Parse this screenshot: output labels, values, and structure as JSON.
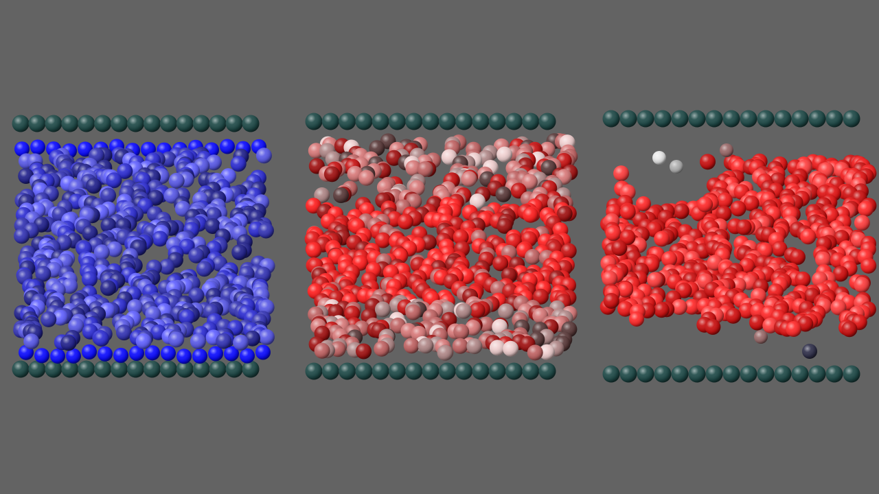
{
  "background": "#636363",
  "wall_color": "#1f4a48",
  "panels": [
    {
      "name": "blue-ensemble",
      "palette": [
        "#0c0cff",
        "#1a1ae6",
        "#2e2ed2",
        "#4646f0",
        "#5a5ae6",
        "#3535b4",
        "#22228c",
        "#6262ff"
      ]
    },
    {
      "name": "mixed-red-ensemble",
      "palette": [
        "#ff2020",
        "#e61818",
        "#c81414",
        "#a01212",
        "#d87a7a",
        "#c06464",
        "#8a4a4a",
        "#f0d0d0",
        "#b08888",
        "#5a3a3a"
      ]
    },
    {
      "name": "red-ensemble",
      "palette": [
        "#ff2a2a",
        "#f01c1c",
        "#e01414",
        "#d01010",
        "#ff4040",
        "#c81010"
      ]
    }
  ],
  "stray_palette": [
    "#e8e8e8",
    "#b0b0b0",
    "#9a6a6a",
    "#30304a"
  ]
}
